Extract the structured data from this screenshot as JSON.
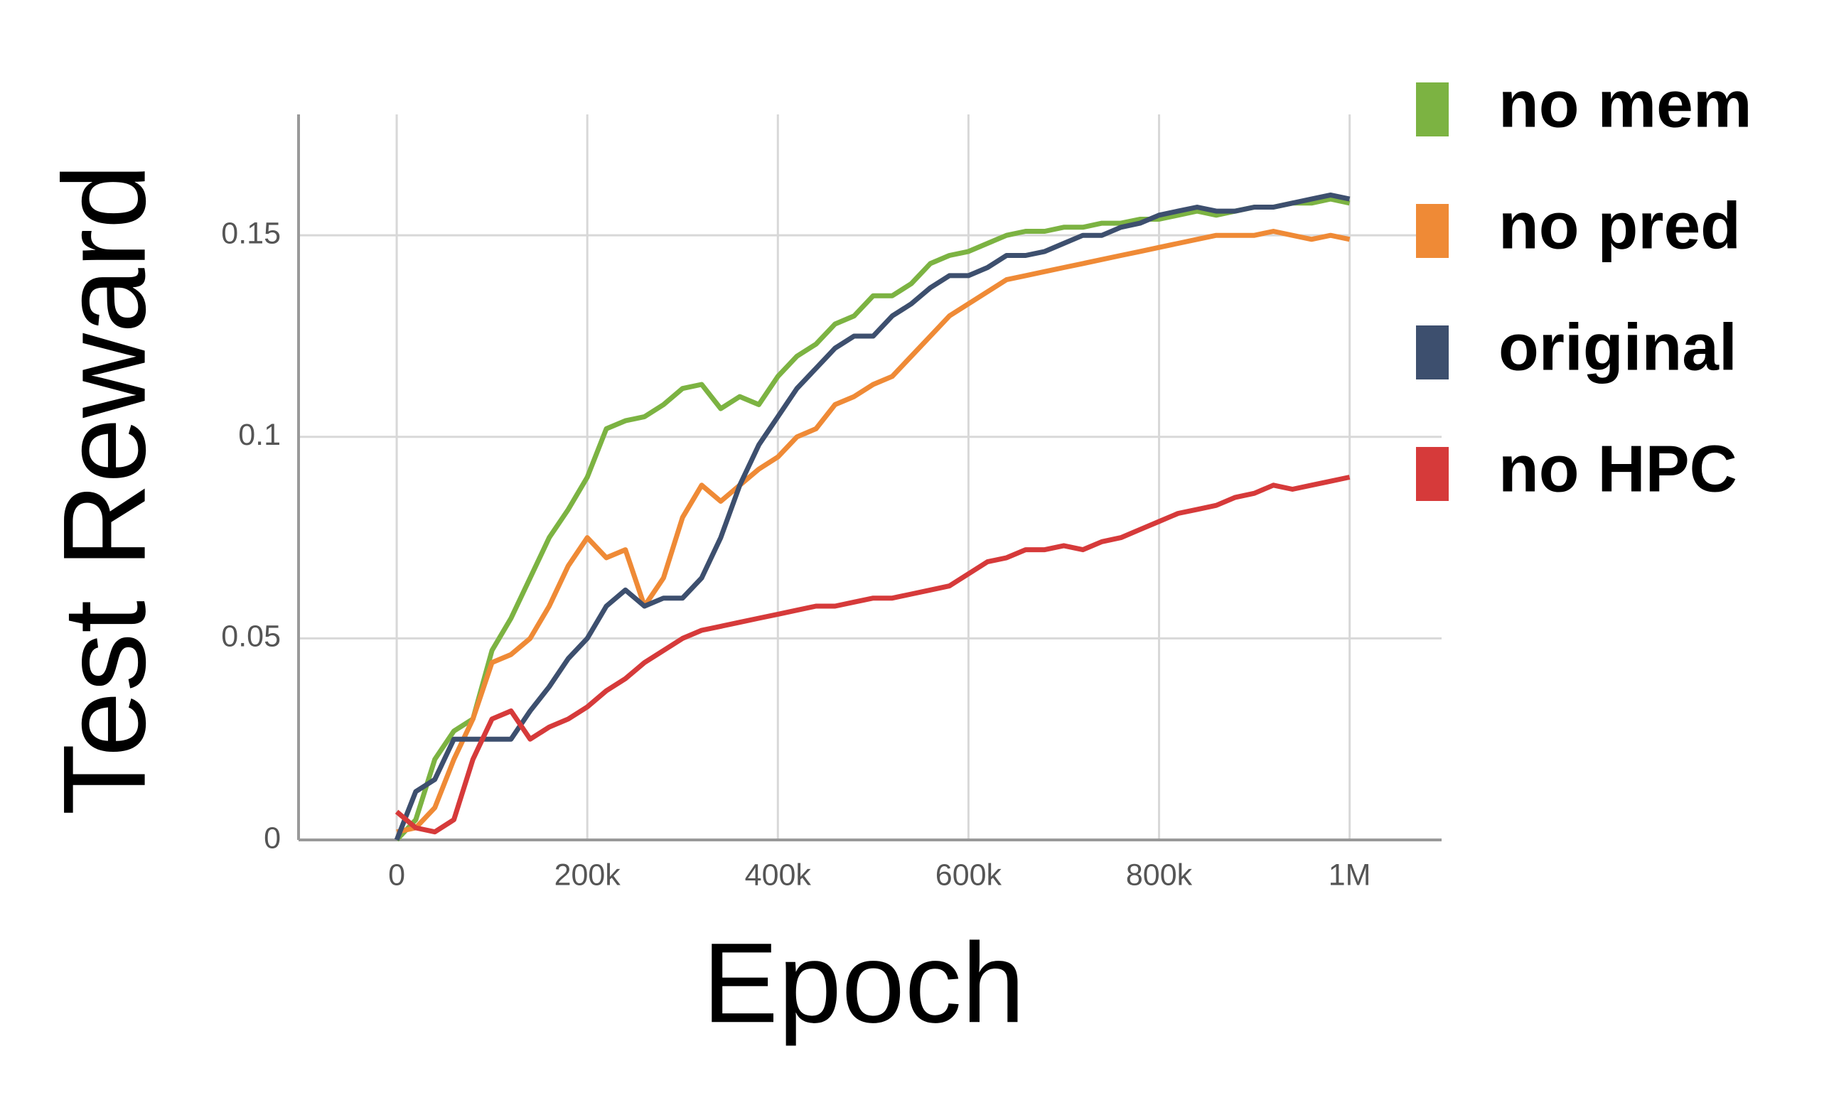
{
  "chart_data": {
    "type": "line",
    "x_label": "Epoch",
    "y_label": "Test Reward",
    "x": [
      0,
      20000,
      40000,
      60000,
      80000,
      100000,
      120000,
      140000,
      160000,
      180000,
      200000,
      220000,
      240000,
      260000,
      280000,
      300000,
      320000,
      340000,
      360000,
      380000,
      400000,
      420000,
      440000,
      460000,
      480000,
      500000,
      520000,
      540000,
      560000,
      580000,
      600000,
      620000,
      640000,
      660000,
      680000,
      700000,
      720000,
      740000,
      760000,
      780000,
      800000,
      820000,
      840000,
      860000,
      880000,
      900000,
      920000,
      940000,
      960000,
      980000,
      1000000
    ],
    "series": [
      {
        "name": "no mem",
        "color": "#7cb342",
        "values": [
          0,
          0.005,
          0.02,
          0.027,
          0.03,
          0.047,
          0.055,
          0.065,
          0.075,
          0.082,
          0.09,
          0.102,
          0.104,
          0.105,
          0.108,
          0.112,
          0.113,
          0.107,
          0.11,
          0.108,
          0.115,
          0.12,
          0.123,
          0.128,
          0.13,
          0.135,
          0.135,
          0.138,
          0.143,
          0.145,
          0.146,
          0.148,
          0.15,
          0.151,
          0.151,
          0.152,
          0.152,
          0.153,
          0.153,
          0.154,
          0.154,
          0.155,
          0.156,
          0.155,
          0.156,
          0.157,
          0.157,
          0.158,
          0.158,
          0.159,
          0.158
        ]
      },
      {
        "name": "no pred",
        "color": "#ef8a36",
        "values": [
          0.002,
          0.003,
          0.008,
          0.02,
          0.03,
          0.044,
          0.046,
          0.05,
          0.058,
          0.068,
          0.075,
          0.07,
          0.072,
          0.058,
          0.065,
          0.08,
          0.088,
          0.084,
          0.088,
          0.092,
          0.095,
          0.1,
          0.102,
          0.108,
          0.11,
          0.113,
          0.115,
          0.12,
          0.125,
          0.13,
          0.133,
          0.136,
          0.139,
          0.14,
          0.141,
          0.142,
          0.143,
          0.144,
          0.145,
          0.146,
          0.147,
          0.148,
          0.149,
          0.15,
          0.15,
          0.15,
          0.151,
          0.15,
          0.149,
          0.15,
          0.149
        ]
      },
      {
        "name": "original",
        "color": "#3d4f6e",
        "values": [
          0,
          0.012,
          0.015,
          0.025,
          0.025,
          0.025,
          0.025,
          0.032,
          0.038,
          0.045,
          0.05,
          0.058,
          0.062,
          0.058,
          0.06,
          0.06,
          0.065,
          0.075,
          0.088,
          0.098,
          0.105,
          0.112,
          0.117,
          0.122,
          0.125,
          0.125,
          0.13,
          0.133,
          0.137,
          0.14,
          0.14,
          0.142,
          0.145,
          0.145,
          0.146,
          0.148,
          0.15,
          0.15,
          0.152,
          0.153,
          0.155,
          0.156,
          0.157,
          0.156,
          0.156,
          0.157,
          0.157,
          0.158,
          0.159,
          0.16,
          0.159
        ]
      },
      {
        "name": "no HPC",
        "color": "#d63a3a",
        "values": [
          0.007,
          0.003,
          0.002,
          0.005,
          0.02,
          0.03,
          0.032,
          0.025,
          0.028,
          0.03,
          0.033,
          0.037,
          0.04,
          0.044,
          0.047,
          0.05,
          0.052,
          0.053,
          0.054,
          0.055,
          0.056,
          0.057,
          0.058,
          0.058,
          0.059,
          0.06,
          0.06,
          0.061,
          0.062,
          0.063,
          0.066,
          0.069,
          0.07,
          0.072,
          0.072,
          0.073,
          0.072,
          0.074,
          0.075,
          0.077,
          0.079,
          0.081,
          0.082,
          0.083,
          0.085,
          0.086,
          0.088,
          0.087,
          0.088,
          0.089,
          0.09
        ]
      }
    ],
    "xlim": [
      -103000,
      1096500
    ],
    "xticks": [
      0,
      {
        "value": 200000,
        "label": "200k"
      },
      {
        "value": 400000,
        "label": "400k"
      },
      {
        "value": 600000,
        "label": "600k"
      },
      {
        "value": 800000,
        "label": "800k"
      },
      {
        "value": 1000000,
        "label": "1M"
      }
    ],
    "ylim": [
      0,
      0.18
    ],
    "yticks": [
      0,
      0.05,
      0.1,
      0.15
    ],
    "grid": true
  }
}
